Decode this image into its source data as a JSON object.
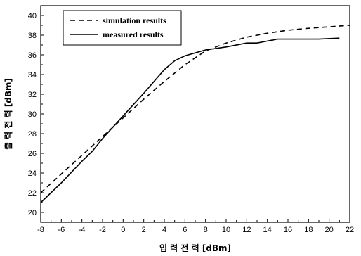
{
  "chart_data": {
    "type": "line",
    "title": "",
    "xlabel": "입 력 전 력 [dBm]",
    "ylabel": "출 력 전 력 [dBm]",
    "xlim": [
      -8,
      22
    ],
    "ylim": [
      19,
      41
    ],
    "xticks": [
      -8,
      -6,
      -4,
      -2,
      0,
      2,
      4,
      6,
      8,
      10,
      12,
      14,
      16,
      18,
      20,
      22
    ],
    "yticks": [
      20,
      22,
      24,
      26,
      28,
      30,
      32,
      34,
      36,
      38,
      40
    ],
    "grid": false,
    "legend_position": "top-left",
    "series": [
      {
        "name": "simulation results",
        "style": "dashed",
        "color": "#000000",
        "x": [
          -8,
          -6,
          -4,
          -2,
          0,
          2,
          4,
          6,
          8,
          10,
          12,
          14,
          16,
          18,
          20,
          22
        ],
        "y": [
          22.0,
          23.9,
          25.8,
          27.7,
          29.6,
          31.5,
          33.3,
          35.0,
          36.4,
          37.2,
          37.8,
          38.2,
          38.5,
          38.7,
          38.85,
          39.0
        ]
      },
      {
        "name": "measured results",
        "style": "solid",
        "color": "#000000",
        "x": [
          -8,
          -6,
          -4,
          -3,
          -2,
          0,
          2,
          4,
          5,
          6,
          7,
          8,
          10,
          12,
          13,
          14,
          15,
          17,
          19,
          21
        ],
        "y": [
          21.0,
          23.0,
          25.2,
          26.2,
          27.5,
          29.8,
          32.1,
          34.5,
          35.4,
          35.9,
          36.2,
          36.5,
          36.8,
          37.2,
          37.2,
          37.4,
          37.6,
          37.6,
          37.6,
          37.7
        ]
      }
    ]
  }
}
